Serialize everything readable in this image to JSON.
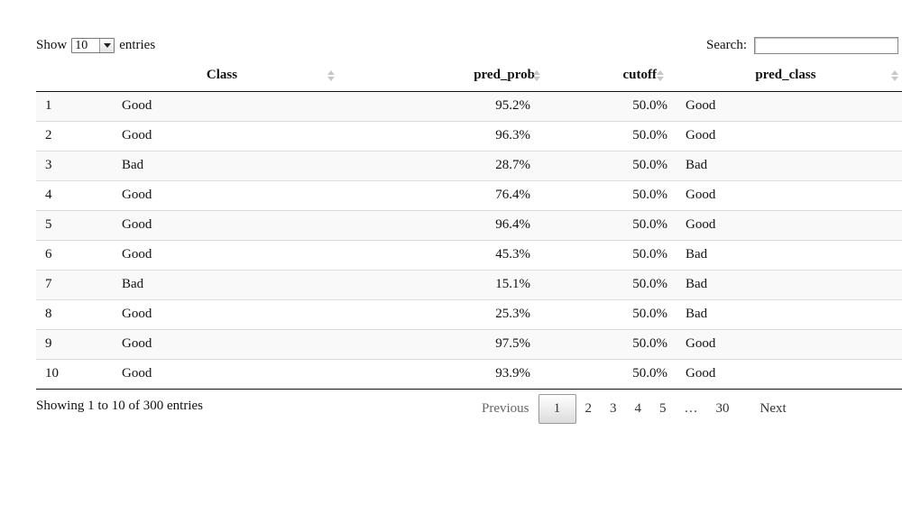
{
  "length_menu": {
    "prefix": "Show",
    "selected": "10",
    "suffix": "entries"
  },
  "search": {
    "label": "Search:",
    "value": ""
  },
  "columns": [
    {
      "label": ""
    },
    {
      "label": "Class"
    },
    {
      "label": "pred_prob"
    },
    {
      "label": "cutoff"
    },
    {
      "label": "pred_class"
    }
  ],
  "rows": [
    {
      "idx": "1",
      "class": "Good",
      "pred_prob": "95.2%",
      "cutoff": "50.0%",
      "pred_class": "Good"
    },
    {
      "idx": "2",
      "class": "Good",
      "pred_prob": "96.3%",
      "cutoff": "50.0%",
      "pred_class": "Good"
    },
    {
      "idx": "3",
      "class": "Bad",
      "pred_prob": "28.7%",
      "cutoff": "50.0%",
      "pred_class": "Bad"
    },
    {
      "idx": "4",
      "class": "Good",
      "pred_prob": "76.4%",
      "cutoff": "50.0%",
      "pred_class": "Good"
    },
    {
      "idx": "5",
      "class": "Good",
      "pred_prob": "96.4%",
      "cutoff": "50.0%",
      "pred_class": "Good"
    },
    {
      "idx": "6",
      "class": "Good",
      "pred_prob": "45.3%",
      "cutoff": "50.0%",
      "pred_class": "Bad"
    },
    {
      "idx": "7",
      "class": "Bad",
      "pred_prob": "15.1%",
      "cutoff": "50.0%",
      "pred_class": "Bad"
    },
    {
      "idx": "8",
      "class": "Good",
      "pred_prob": "25.3%",
      "cutoff": "50.0%",
      "pred_class": "Bad"
    },
    {
      "idx": "9",
      "class": "Good",
      "pred_prob": "97.5%",
      "cutoff": "50.0%",
      "pred_class": "Good"
    },
    {
      "idx": "10",
      "class": "Good",
      "pred_prob": "93.9%",
      "cutoff": "50.0%",
      "pred_class": "Good"
    }
  ],
  "info": "Showing 1 to 10 of 300 entries",
  "pagination": {
    "previous": "Previous",
    "pages": [
      "1",
      "2",
      "3",
      "4",
      "5",
      "…",
      "30"
    ],
    "current": "1",
    "next": "Next"
  },
  "colors": {
    "stripe": "#f9f9f9",
    "row_border": "#dddddd",
    "header_border": "#111111"
  }
}
